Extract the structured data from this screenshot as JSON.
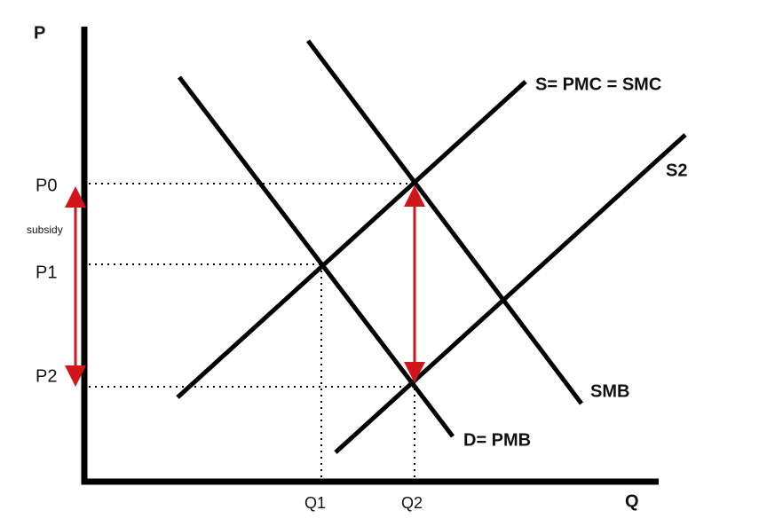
{
  "axes": {
    "y_label": "P",
    "x_label": "Q"
  },
  "prices": [
    "P0",
    "P1",
    "P2"
  ],
  "quantities": [
    "Q1",
    "Q2"
  ],
  "annotation": "subsidy",
  "curves": [
    {
      "label": "D= PMB"
    },
    {
      "label": "SMB"
    },
    {
      "label": "S= PMC = SMC"
    },
    {
      "label": "S2"
    }
  ]
}
